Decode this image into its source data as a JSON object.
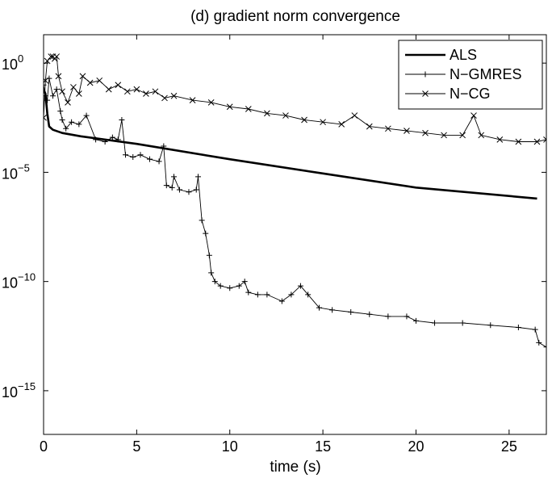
{
  "chart_data": {
    "type": "line",
    "title": "(d) gradient norm convergence",
    "xlabel": "time (s)",
    "ylabel": "",
    "xlim": [
      0,
      27
    ],
    "ylim_log10": [
      -17,
      1.3
    ],
    "y_scale": "log",
    "x_ticks": [
      0,
      5,
      10,
      15,
      20,
      25
    ],
    "x_tick_labels": [
      "0",
      "5",
      "10",
      "15",
      "20",
      "25"
    ],
    "y_ticks_log10": [
      0,
      -5,
      -10,
      -15
    ],
    "y_tick_labels": [
      {
        "base": "10",
        "exp": "0"
      },
      {
        "base": "10",
        "exp": "−5"
      },
      {
        "base": "10",
        "exp": "−10"
      },
      {
        "base": "10",
        "exp": "−15"
      }
    ],
    "grid": false,
    "legend_position": "top-right",
    "series": [
      {
        "name": "ALS",
        "marker": "none",
        "line_width": "thick",
        "points_log10": [
          [
            0,
            -1.2
          ],
          [
            0.1,
            -1.4
          ],
          [
            0.2,
            -2.3
          ],
          [
            0.3,
            -2.9
          ],
          [
            0.5,
            -3.05
          ],
          [
            1,
            -3.2
          ],
          [
            2,
            -3.35
          ],
          [
            5,
            -3.7
          ],
          [
            10,
            -4.4
          ],
          [
            15,
            -5.05
          ],
          [
            20,
            -5.7
          ],
          [
            26.5,
            -6.2
          ]
        ]
      },
      {
        "name": "N−GMRES",
        "marker": "plus",
        "line_width": "thin",
        "points_log10": [
          [
            0,
            -1.0
          ],
          [
            0.1,
            -1.5
          ],
          [
            0.2,
            -1.7
          ],
          [
            0.3,
            -0.7
          ],
          [
            0.5,
            -1.5
          ],
          [
            0.7,
            -1.2
          ],
          [
            0.9,
            -2.2
          ],
          [
            1.0,
            -2.6
          ],
          [
            1.2,
            -3.0
          ],
          [
            1.5,
            -2.7
          ],
          [
            1.9,
            -2.8
          ],
          [
            2.3,
            -2.4
          ],
          [
            2.8,
            -3.5
          ],
          [
            3.3,
            -3.6
          ],
          [
            3.7,
            -3.4
          ],
          [
            4.0,
            -3.5
          ],
          [
            4.2,
            -2.6
          ],
          [
            4.4,
            -4.2
          ],
          [
            4.8,
            -4.3
          ],
          [
            5.2,
            -4.2
          ],
          [
            5.7,
            -4.4
          ],
          [
            6.2,
            -4.5
          ],
          [
            6.45,
            -3.8
          ],
          [
            6.6,
            -5.6
          ],
          [
            6.9,
            -5.7
          ],
          [
            7.0,
            -5.2
          ],
          [
            7.3,
            -5.8
          ],
          [
            7.8,
            -5.9
          ],
          [
            8.2,
            -5.8
          ],
          [
            8.3,
            -5.2
          ],
          [
            8.5,
            -7.2
          ],
          [
            8.7,
            -7.8
          ],
          [
            8.9,
            -8.8
          ],
          [
            9.0,
            -9.6
          ],
          [
            9.2,
            -10.0
          ],
          [
            9.5,
            -10.2
          ],
          [
            10.0,
            -10.3
          ],
          [
            10.5,
            -10.2
          ],
          [
            10.8,
            -10.0
          ],
          [
            11.0,
            -10.5
          ],
          [
            11.5,
            -10.6
          ],
          [
            12.0,
            -10.6
          ],
          [
            12.8,
            -10.9
          ],
          [
            13.3,
            -10.6
          ],
          [
            13.8,
            -10.2
          ],
          [
            14.2,
            -10.6
          ],
          [
            14.8,
            -11.2
          ],
          [
            15.5,
            -11.3
          ],
          [
            16.5,
            -11.4
          ],
          [
            17.5,
            -11.5
          ],
          [
            18.5,
            -11.6
          ],
          [
            19.5,
            -11.6
          ],
          [
            20.0,
            -11.8
          ],
          [
            21.0,
            -11.9
          ],
          [
            22.5,
            -11.9
          ],
          [
            24.0,
            -12.0
          ],
          [
            25.5,
            -12.1
          ],
          [
            26.4,
            -12.2
          ],
          [
            26.6,
            -12.8
          ],
          [
            27.0,
            -13.0
          ]
        ]
      },
      {
        "name": "N−CG",
        "marker": "x",
        "line_width": "thin",
        "points_log10": [
          [
            0,
            -2.5
          ],
          [
            0.1,
            -0.8
          ],
          [
            0.2,
            0.1
          ],
          [
            0.4,
            0.3
          ],
          [
            0.5,
            0.3
          ],
          [
            0.6,
            0.2
          ],
          [
            0.7,
            0.3
          ],
          [
            0.8,
            -0.6
          ],
          [
            1.0,
            -1.3
          ],
          [
            1.3,
            -1.8
          ],
          [
            1.6,
            -1.1
          ],
          [
            1.9,
            -1.4
          ],
          [
            2.1,
            -0.6
          ],
          [
            2.5,
            -0.9
          ],
          [
            3.0,
            -0.8
          ],
          [
            3.5,
            -1.2
          ],
          [
            4.0,
            -1.0
          ],
          [
            4.5,
            -1.3
          ],
          [
            5.0,
            -1.2
          ],
          [
            5.5,
            -1.4
          ],
          [
            6.0,
            -1.3
          ],
          [
            6.5,
            -1.6
          ],
          [
            7.0,
            -1.5
          ],
          [
            8.0,
            -1.7
          ],
          [
            9.0,
            -1.8
          ],
          [
            10.0,
            -2.0
          ],
          [
            11.0,
            -2.1
          ],
          [
            12.0,
            -2.3
          ],
          [
            13.0,
            -2.4
          ],
          [
            14.0,
            -2.6
          ],
          [
            15.0,
            -2.7
          ],
          [
            16.0,
            -2.8
          ],
          [
            16.7,
            -2.4
          ],
          [
            17.5,
            -2.9
          ],
          [
            18.5,
            -3.0
          ],
          [
            19.5,
            -3.1
          ],
          [
            20.5,
            -3.2
          ],
          [
            21.5,
            -3.3
          ],
          [
            22.5,
            -3.3
          ],
          [
            23.1,
            -2.4
          ],
          [
            23.5,
            -3.3
          ],
          [
            24.5,
            -3.5
          ],
          [
            25.5,
            -3.6
          ],
          [
            26.5,
            -3.6
          ],
          [
            27.0,
            -3.5
          ]
        ]
      }
    ]
  }
}
